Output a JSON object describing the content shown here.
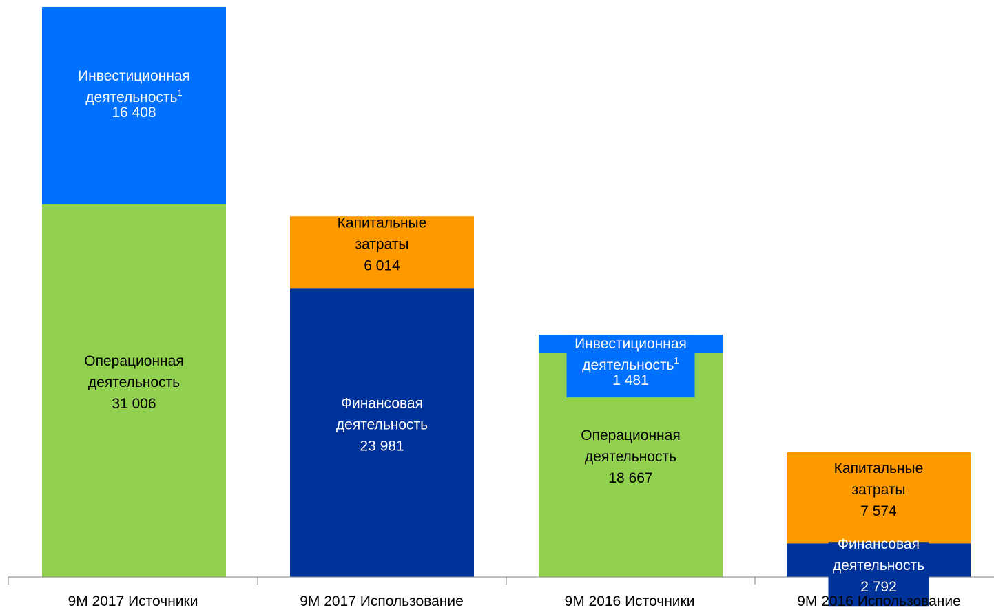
{
  "chart_data": {
    "type": "stacked-bar",
    "categories": [
      "9M 2017 Источники",
      "9M 2017 Использование",
      "9M 2016 Источники",
      "9M 2016 Использование"
    ],
    "ylim": [
      0,
      47414
    ],
    "grid": false,
    "legend": "none",
    "bars": [
      {
        "category": "9M 2017 Источники",
        "segments": [
          {
            "label": [
              "Операционная",
              "деятельность"
            ],
            "value": 31006,
            "value_text": "31 006",
            "color": "#92D050",
            "text_color": "#000000"
          },
          {
            "label": [
              "Инвестиционная",
              "деятельность"
            ],
            "footnote": "1",
            "value": 16408,
            "value_text": "16 408",
            "color": "#0070FF",
            "text_color": "#FFFFFF"
          }
        ]
      },
      {
        "category": "9M 2017 Использование",
        "segments": [
          {
            "label": [
              "Финансовая",
              "деятельность"
            ],
            "value": 23981,
            "value_text": "23 981",
            "color": "#003399",
            "text_color": "#FFFFFF"
          },
          {
            "label": [
              "Капитальные",
              "затраты"
            ],
            "value": 6014,
            "value_text": "6 014",
            "color": "#FF9900",
            "text_color": "#000000"
          }
        ]
      },
      {
        "category": "9M 2016 Источники",
        "segments": [
          {
            "label": [
              "Операционная",
              "деятельность"
            ],
            "value": 18667,
            "value_text": "18 667",
            "color": "#92D050",
            "text_color": "#000000"
          },
          {
            "label": [
              "Инвестиционная",
              "деятельность"
            ],
            "footnote": "1",
            "value": 1481,
            "value_text": "1 481",
            "color": "#0070FF",
            "text_color": "#FFFFFF",
            "label_box": true
          }
        ]
      },
      {
        "category": "9M 2016 Использование",
        "segments": [
          {
            "label": [
              "Финансовая",
              "деятельность"
            ],
            "value": 2792,
            "value_text": "2 792",
            "color": "#003399",
            "text_color": "#FFFFFF",
            "label_box": true
          },
          {
            "label": [
              "Капитальные",
              "затраты"
            ],
            "value": 7574,
            "value_text": "7 574",
            "color": "#FF9900",
            "text_color": "#000000"
          }
        ]
      }
    ],
    "axis_color": "#7F7F7F"
  }
}
